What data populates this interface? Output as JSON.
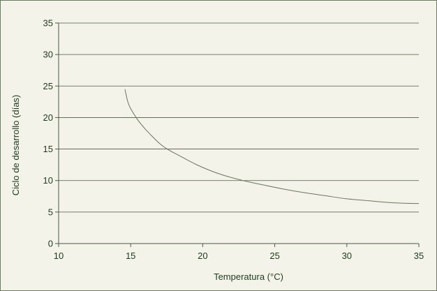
{
  "chart_data": {
    "type": "line",
    "title": "",
    "xlabel": "Temperatura (°C)",
    "ylabel": "Ciclo de desarrollo (días)",
    "xlim": [
      10,
      35
    ],
    "ylim": [
      0,
      35
    ],
    "x_ticks": [
      "10",
      "15",
      "20",
      "25",
      "30",
      "35"
    ],
    "y_ticks": [
      "0",
      "5",
      "10",
      "15",
      "20",
      "25",
      "30",
      "35"
    ],
    "grid": "horizontal",
    "legend": "none",
    "series": [
      {
        "color": "#6b7563",
        "x": [
          14.6,
          14.8,
          15.0,
          15.5,
          16.0,
          16.5,
          17.0,
          17.6,
          18.5,
          19.5,
          20.5,
          21.5,
          22.8,
          24.0,
          25.5,
          27.0,
          28.5,
          30.0,
          31.5,
          33.0,
          34.0,
          35.0
        ],
        "y": [
          24.5,
          22.5,
          21.4,
          19.6,
          18.2,
          17.0,
          15.9,
          14.9,
          13.8,
          12.6,
          11.6,
          10.8,
          10.0,
          9.4,
          8.7,
          8.1,
          7.6,
          7.1,
          6.8,
          6.5,
          6.4,
          6.35
        ]
      }
    ]
  }
}
